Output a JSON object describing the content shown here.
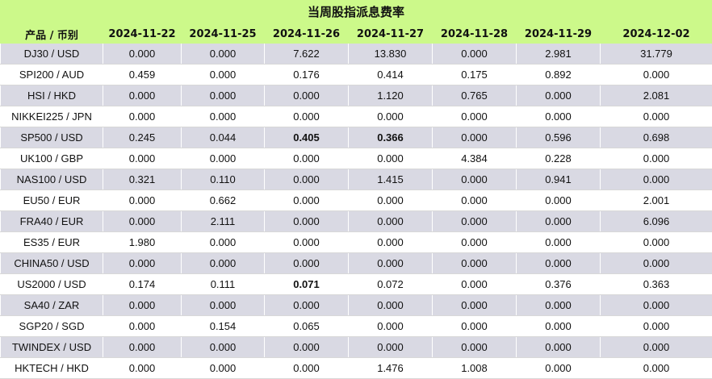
{
  "title": "当周股指派息费率",
  "columns": [
    "产品 / 币别",
    "2024-11-22",
    "2024-11-25",
    "2024-11-26",
    "2024-11-27",
    "2024-11-28",
    "2024-11-29",
    "2024-12-02"
  ],
  "rows": [
    {
      "product": "DJ30 / USD",
      "values": [
        "0.000",
        "0.000",
        "7.622",
        "13.830",
        "0.000",
        "2.981",
        "31.779"
      ],
      "bold": []
    },
    {
      "product": "SPI200 / AUD",
      "values": [
        "0.459",
        "0.000",
        "0.176",
        "0.414",
        "0.175",
        "0.892",
        "0.000"
      ],
      "bold": []
    },
    {
      "product": "HSI / HKD",
      "values": [
        "0.000",
        "0.000",
        "0.000",
        "1.120",
        "0.765",
        "0.000",
        "2.081"
      ],
      "bold": []
    },
    {
      "product": "NIKKEI225 / JPN",
      "values": [
        "0.000",
        "0.000",
        "0.000",
        "0.000",
        "0.000",
        "0.000",
        "0.000"
      ],
      "bold": []
    },
    {
      "product": "SP500 / USD",
      "values": [
        "0.245",
        "0.044",
        "0.405",
        "0.366",
        "0.000",
        "0.596",
        "0.698"
      ],
      "bold": [
        2,
        3
      ]
    },
    {
      "product": "UK100 / GBP",
      "values": [
        "0.000",
        "0.000",
        "0.000",
        "0.000",
        "4.384",
        "0.228",
        "0.000"
      ],
      "bold": []
    },
    {
      "product": "NAS100 / USD",
      "values": [
        "0.321",
        "0.110",
        "0.000",
        "1.415",
        "0.000",
        "0.941",
        "0.000"
      ],
      "bold": []
    },
    {
      "product": "EU50 / EUR",
      "values": [
        "0.000",
        "0.662",
        "0.000",
        "0.000",
        "0.000",
        "0.000",
        "2.001"
      ],
      "bold": []
    },
    {
      "product": "FRA40 / EUR",
      "values": [
        "0.000",
        "2.111",
        "0.000",
        "0.000",
        "0.000",
        "0.000",
        "6.096"
      ],
      "bold": []
    },
    {
      "product": "ES35 / EUR",
      "values": [
        "1.980",
        "0.000",
        "0.000",
        "0.000",
        "0.000",
        "0.000",
        "0.000"
      ],
      "bold": []
    },
    {
      "product": "CHINA50 / USD",
      "values": [
        "0.000",
        "0.000",
        "0.000",
        "0.000",
        "0.000",
        "0.000",
        "0.000"
      ],
      "bold": []
    },
    {
      "product": "US2000 / USD",
      "values": [
        "0.174",
        "0.111",
        "0.071",
        "0.072",
        "0.000",
        "0.376",
        "0.363"
      ],
      "bold": [
        2
      ]
    },
    {
      "product": "SA40 / ZAR",
      "values": [
        "0.000",
        "0.000",
        "0.000",
        "0.000",
        "0.000",
        "0.000",
        "0.000"
      ],
      "bold": []
    },
    {
      "product": "SGP20 / SGD",
      "values": [
        "0.000",
        "0.154",
        "0.065",
        "0.000",
        "0.000",
        "0.000",
        "0.000"
      ],
      "bold": []
    },
    {
      "product": "TWINDEX / USD",
      "values": [
        "0.000",
        "0.000",
        "0.000",
        "0.000",
        "0.000",
        "0.000",
        "0.000"
      ],
      "bold": []
    },
    {
      "product": "HKTECH / HKD",
      "values": [
        "0.000",
        "0.000",
        "0.000",
        "1.476",
        "1.008",
        "0.000",
        "0.000"
      ],
      "bold": []
    }
  ]
}
